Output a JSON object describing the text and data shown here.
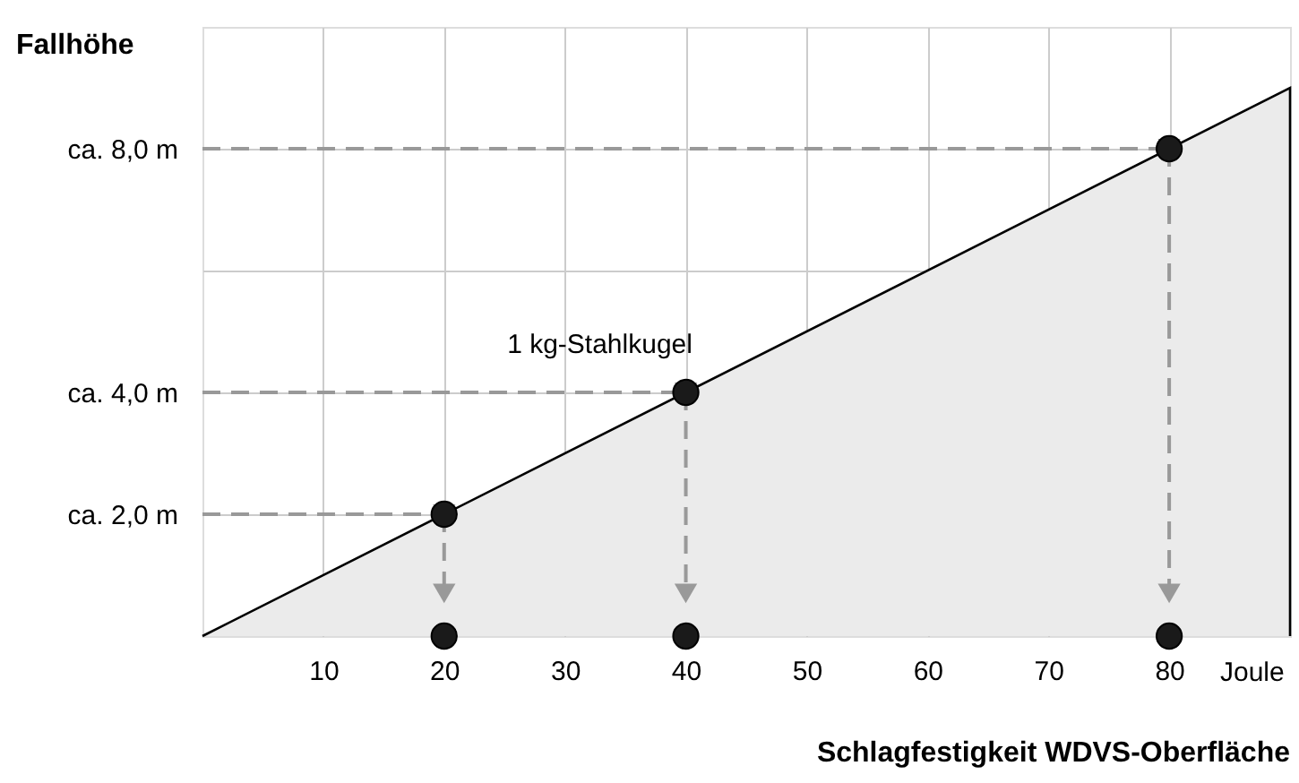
{
  "chart_data": {
    "type": "line",
    "xlabel": "Schlagfestigkeit WDVS-Oberfläche",
    "ylabel": "Fallhöhe",
    "xlim": [
      0,
      90
    ],
    "xticks": [
      10,
      20,
      30,
      40,
      50,
      60,
      70,
      80
    ],
    "ylim": [
      0,
      10
    ],
    "yticks": [
      {
        "value": 2,
        "label": "ca. 2,0 m"
      },
      {
        "value": 4,
        "label": "ca. 4,0 m"
      },
      {
        "value": 6,
        "label": null
      },
      {
        "value": 8,
        "label": "ca. 8,0 m"
      }
    ],
    "grid": true,
    "annotations": [
      {
        "text": "1 kg-Stahlkugel",
        "x": 40,
        "y": 4
      },
      "Joule"
    ],
    "series": [
      {
        "type": "area",
        "x": [
          0,
          90
        ],
        "values": [
          0,
          9
        ],
        "color": "#ebebeb"
      },
      {
        "x": [
          0,
          20
        ],
        "values": [
          2,
          2
        ],
        "color": "#999999",
        "line_style": "dashed"
      },
      {
        "x": [
          0,
          40
        ],
        "values": [
          4,
          4
        ],
        "color": "#999999",
        "line_style": "dashed"
      },
      {
        "x": [
          0,
          80
        ],
        "values": [
          8,
          8
        ],
        "color": "#999999",
        "line_style": "dashed"
      },
      {
        "x": [
          20,
          20
        ],
        "values": [
          2,
          0.7
        ],
        "color": "#999999",
        "line_style": "dashed",
        "marker": "triangle"
      },
      {
        "x": [
          40,
          40
        ],
        "values": [
          4,
          0.7
        ],
        "color": "#999999",
        "line_style": "dashed",
        "marker": "triangle"
      },
      {
        "x": [
          80,
          80
        ],
        "values": [
          8,
          0.7
        ],
        "color": "#999999",
        "line_style": "dashed",
        "marker": "triangle"
      },
      {
        "type": "scatter",
        "x": [
          20,
          40,
          80,
          20,
          40,
          80
        ],
        "values": [
          2,
          4,
          8,
          0,
          0,
          0
        ],
        "color": "#1a1a1a",
        "marker": "circle"
      }
    ]
  }
}
